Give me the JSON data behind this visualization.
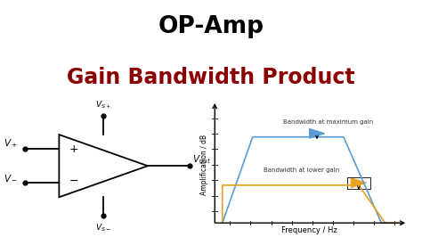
{
  "title_line1": "OP-Amp",
  "title_line2": "Gain Bandwidth Product",
  "title_color1": "#000000",
  "title_color2": "#8B0000",
  "bg_color": "#ffffff",
  "blue_line_color": "#5b9bd5",
  "orange_line_color": "#e8a020",
  "xlabel": "Frequency / Hz",
  "ylabel": "Amplification / dB",
  "label_max_gain": "Bandwidth at maximum gain",
  "label_lower_gain": "Bandwidth at lower gain",
  "blue_x": [
    0.04,
    0.2,
    0.68,
    0.88,
    0.97
  ],
  "blue_y": [
    0.0,
    0.82,
    0.82,
    0.0,
    0.0
  ],
  "orange_x": [
    0.04,
    0.04,
    0.76,
    0.9,
    0.97
  ],
  "orange_y": [
    0.0,
    0.36,
    0.36,
    0.0,
    0.0
  ]
}
